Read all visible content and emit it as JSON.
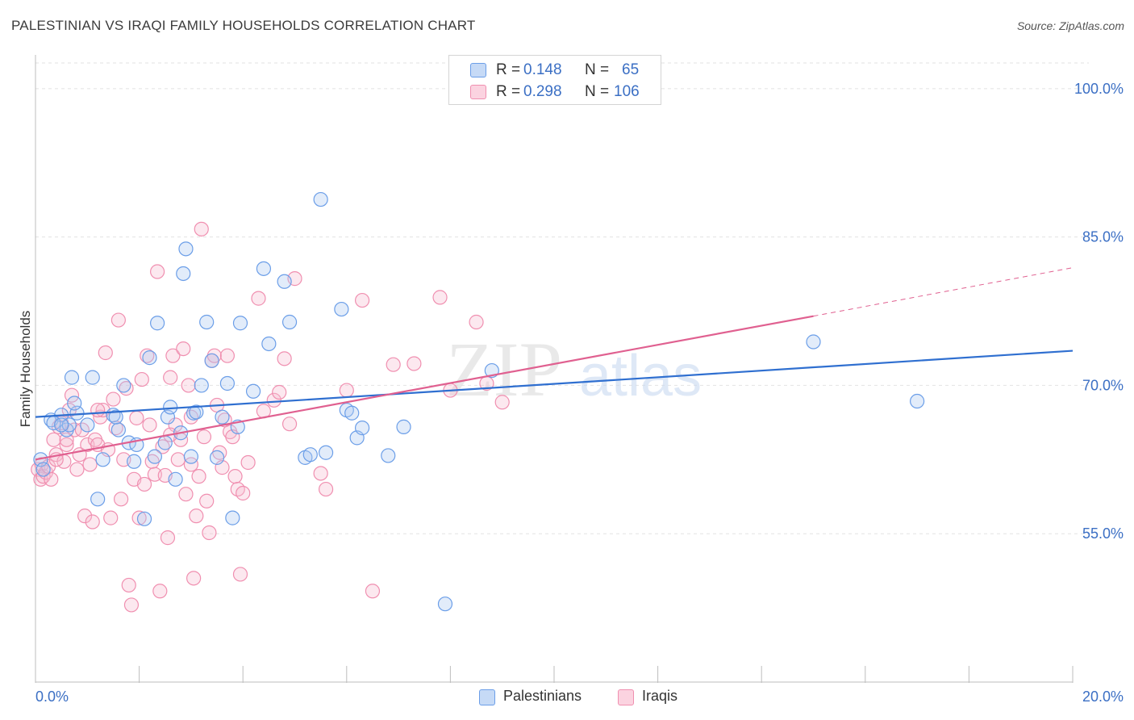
{
  "title": "PALESTINIAN VS IRAQI FAMILY HOUSEHOLDS CORRELATION CHART",
  "source": "Source: ZipAtlas.com",
  "watermark": {
    "zip": "ZIP",
    "atlas": "atlas"
  },
  "legend": {
    "rows": [
      {
        "r_label": "R =",
        "r_value": "0.148",
        "n_label": "N =",
        "n_value": "65",
        "swatch": "#adc8f0"
      },
      {
        "r_label": "R =",
        "r_value": "0.298",
        "n_label": "N =",
        "n_value": "106",
        "swatch": "#f6bcd0"
      }
    ]
  },
  "bottom_legend": [
    {
      "label": "Palestinians",
      "swatch": "#adc8f0"
    },
    {
      "label": "Iraqis",
      "swatch": "#f6bcd0"
    }
  ],
  "chart_data": {
    "type": "scatter",
    "title": "PALESTINIAN VS IRAQI FAMILY HOUSEHOLDS CORRELATION CHART",
    "ylabel": "Family Households",
    "xlabel": "",
    "xlim": [
      0,
      20
    ],
    "ylim": [
      40,
      102.6
    ],
    "x_tick_labels": [
      "0.0%",
      "20.0%"
    ],
    "y_ticks": [
      {
        "value": 55,
        "label": "55.0%"
      },
      {
        "value": 70,
        "label": "70.0%"
      },
      {
        "value": 85,
        "label": "85.0%"
      },
      {
        "value": 100,
        "label": "100.0%"
      }
    ],
    "grid": true,
    "colors": {
      "palestinians": "#6b9ee8",
      "iraqis": "#f08fb0",
      "pal_line": "#2f6fd0",
      "iraq_line": "#e06090",
      "tick_label": "#3b6fc4"
    },
    "series": [
      {
        "name": "Palestinians",
        "trend": {
          "x0": 0,
          "y0": 66.8,
          "x1": 20,
          "y1": 73.5
        },
        "points": [
          [
            0.1,
            62.5
          ],
          [
            0.15,
            61.5
          ],
          [
            0.3,
            66.5
          ],
          [
            0.5,
            67
          ],
          [
            0.8,
            67.2
          ],
          [
            0.6,
            65.5
          ],
          [
            0.65,
            66
          ],
          [
            0.7,
            70.8
          ],
          [
            0.75,
            68.2
          ],
          [
            1.0,
            66
          ],
          [
            1.1,
            70.8
          ],
          [
            1.3,
            62.5
          ],
          [
            1.2,
            58.5
          ],
          [
            1.5,
            67
          ],
          [
            1.6,
            65.5
          ],
          [
            1.7,
            70
          ],
          [
            1.8,
            64.2
          ],
          [
            1.9,
            62.3
          ],
          [
            1.95,
            64
          ],
          [
            2.1,
            56.5
          ],
          [
            2.2,
            72.8
          ],
          [
            2.3,
            62.8
          ],
          [
            2.35,
            76.3
          ],
          [
            2.5,
            64.2
          ],
          [
            2.55,
            66.8
          ],
          [
            2.6,
            67.8
          ],
          [
            2.7,
            60.5
          ],
          [
            2.8,
            65.2
          ],
          [
            2.85,
            81.3
          ],
          [
            2.9,
            83.8
          ],
          [
            3.0,
            62.8
          ],
          [
            3.05,
            67.2
          ],
          [
            3.1,
            67.3
          ],
          [
            3.2,
            70
          ],
          [
            3.3,
            76.4
          ],
          [
            3.4,
            72.5
          ],
          [
            3.5,
            62.7
          ],
          [
            3.6,
            66.8
          ],
          [
            3.7,
            70.2
          ],
          [
            3.8,
            56.6
          ],
          [
            3.9,
            65.8
          ],
          [
            3.95,
            76.3
          ],
          [
            4.2,
            69.4
          ],
          [
            4.4,
            81.8
          ],
          [
            4.5,
            74.2
          ],
          [
            4.8,
            80.5
          ],
          [
            4.9,
            76.4
          ],
          [
            5.2,
            62.7
          ],
          [
            5.3,
            63
          ],
          [
            5.5,
            88.8
          ],
          [
            5.6,
            63.2
          ],
          [
            5.9,
            77.7
          ],
          [
            6.0,
            67.5
          ],
          [
            6.1,
            67.2
          ],
          [
            6.2,
            64.7
          ],
          [
            6.3,
            65.7
          ],
          [
            6.8,
            62.9
          ],
          [
            7.1,
            65.8
          ],
          [
            7.9,
            47.9
          ],
          [
            8.8,
            71.5
          ],
          [
            15.0,
            74.4
          ],
          [
            17.0,
            68.4
          ],
          [
            0.35,
            66.2
          ],
          [
            1.55,
            66.8
          ],
          [
            0.5,
            66
          ]
        ]
      },
      {
        "name": "Iraqis",
        "trend": {
          "x0": 0,
          "y0": 62.5,
          "x1": 15.0,
          "y1": 77.0
        },
        "trend_dashed": {
          "x0": 15.0,
          "y0": 77.0,
          "x1": 20,
          "y1": 81.9
        },
        "points": [
          [
            0.05,
            61.5
          ],
          [
            0.1,
            60.5
          ],
          [
            0.12,
            62
          ],
          [
            0.15,
            60.8
          ],
          [
            0.2,
            61.2
          ],
          [
            0.25,
            61.8
          ],
          [
            0.3,
            60.5
          ],
          [
            0.35,
            64.5
          ],
          [
            0.4,
            63
          ],
          [
            0.45,
            65.8
          ],
          [
            0.5,
            66.2
          ],
          [
            0.55,
            62.3
          ],
          [
            0.6,
            64
          ],
          [
            0.65,
            67.5
          ],
          [
            0.7,
            69
          ],
          [
            0.75,
            65.5
          ],
          [
            0.8,
            61.5
          ],
          [
            0.85,
            63
          ],
          [
            0.9,
            65.5
          ],
          [
            0.95,
            56.8
          ],
          [
            1.0,
            64
          ],
          [
            1.05,
            62
          ],
          [
            1.1,
            56.2
          ],
          [
            1.15,
            64.5
          ],
          [
            1.2,
            64
          ],
          [
            1.25,
            66.8
          ],
          [
            1.3,
            67.5
          ],
          [
            1.35,
            73.3
          ],
          [
            1.4,
            63.5
          ],
          [
            1.45,
            56.6
          ],
          [
            1.5,
            68.6
          ],
          [
            1.55,
            65.7
          ],
          [
            1.6,
            76.6
          ],
          [
            1.65,
            58.5
          ],
          [
            1.7,
            62.5
          ],
          [
            1.75,
            69.7
          ],
          [
            1.8,
            49.8
          ],
          [
            1.85,
            47.8
          ],
          [
            1.9,
            60.5
          ],
          [
            1.95,
            66.7
          ],
          [
            2.0,
            56.6
          ],
          [
            2.05,
            70.6
          ],
          [
            2.1,
            60
          ],
          [
            2.15,
            73
          ],
          [
            2.2,
            66
          ],
          [
            2.25,
            62.3
          ],
          [
            2.3,
            61
          ],
          [
            2.35,
            81.5
          ],
          [
            2.4,
            49.2
          ],
          [
            2.45,
            63.8
          ],
          [
            2.5,
            60.9
          ],
          [
            2.55,
            54.6
          ],
          [
            2.6,
            70.8
          ],
          [
            2.65,
            73
          ],
          [
            2.7,
            66
          ],
          [
            2.75,
            62.5
          ],
          [
            2.8,
            64.5
          ],
          [
            2.85,
            73.7
          ],
          [
            2.9,
            59
          ],
          [
            2.95,
            70
          ],
          [
            3.0,
            66.8
          ],
          [
            3.05,
            50.5
          ],
          [
            3.1,
            56.8
          ],
          [
            3.15,
            60.8
          ],
          [
            3.2,
            85.8
          ],
          [
            3.25,
            64.8
          ],
          [
            3.3,
            58.3
          ],
          [
            3.35,
            55.1
          ],
          [
            3.4,
            72.5
          ],
          [
            3.45,
            73
          ],
          [
            3.5,
            68
          ],
          [
            3.55,
            63.2
          ],
          [
            3.6,
            61.7
          ],
          [
            3.65,
            66.5
          ],
          [
            3.7,
            73
          ],
          [
            3.75,
            65.3
          ],
          [
            3.8,
            64.8
          ],
          [
            3.85,
            60.8
          ],
          [
            3.9,
            59.5
          ],
          [
            3.95,
            50.9
          ],
          [
            4.0,
            59.1
          ],
          [
            4.1,
            62.2
          ],
          [
            4.3,
            78.8
          ],
          [
            4.4,
            67.4
          ],
          [
            4.6,
            68.5
          ],
          [
            4.7,
            69.3
          ],
          [
            4.8,
            72.7
          ],
          [
            4.9,
            66.1
          ],
          [
            5.0,
            80.8
          ],
          [
            5.5,
            61.1
          ],
          [
            5.6,
            59.5
          ],
          [
            6.0,
            69.5
          ],
          [
            6.3,
            78.6
          ],
          [
            6.5,
            49.2
          ],
          [
            6.9,
            72.1
          ],
          [
            7.3,
            72.2
          ],
          [
            7.8,
            78.9
          ],
          [
            8.0,
            69.5
          ],
          [
            8.5,
            76.4
          ],
          [
            8.7,
            70.2
          ],
          [
            9.0,
            68.3
          ],
          [
            2.6,
            65
          ],
          [
            3.0,
            62
          ],
          [
            1.2,
            67.5
          ],
          [
            0.4,
            62.5
          ],
          [
            0.6,
            64.5
          ]
        ]
      }
    ]
  }
}
